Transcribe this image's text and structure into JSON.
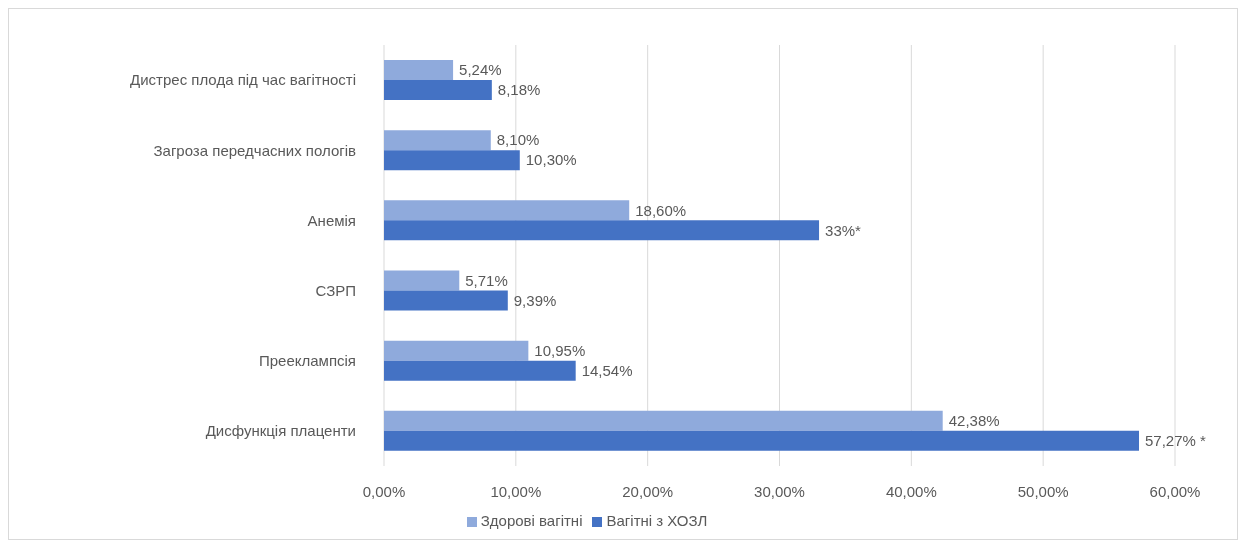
{
  "chart_data": {
    "type": "bar",
    "orientation": "horizontal",
    "categories": [
      "Дистрес плода під час вагітності",
      "Загроза передчасних пологів",
      "Анемія",
      "СЗРП",
      "Прееклампсія",
      "Дисфункція плаценти"
    ],
    "series": [
      {
        "name": "Здорові вагітні",
        "color": "#8faadc",
        "values": [
          5.24,
          8.1,
          18.6,
          5.71,
          10.95,
          42.38
        ],
        "value_labels": [
          "5,24%",
          "8,10%",
          "18,60%",
          "5,71%",
          "10,95%",
          "42,38%"
        ]
      },
      {
        "name": "Вагітні з ХОЗЛ",
        "color": "#4472c4",
        "values": [
          8.18,
          10.3,
          33,
          9.39,
          14.54,
          57.27
        ],
        "value_labels": [
          "8,18%",
          "10,30%",
          "33%*",
          "9,39%",
          "14,54%",
          "57,27% *"
        ]
      }
    ],
    "xlim": [
      0,
      60
    ],
    "xticks": [
      {
        "value": 0,
        "label": "0,00%"
      },
      {
        "value": 10,
        "label": "10,00%"
      },
      {
        "value": 20,
        "label": "20,00%"
      },
      {
        "value": 30,
        "label": "30,00%"
      },
      {
        "value": 40,
        "label": "40,00%"
      },
      {
        "value": 50,
        "label": "50,00%"
      },
      {
        "value": 60,
        "label": "60,00%"
      }
    ],
    "grid": "x",
    "legend": "bottom"
  }
}
